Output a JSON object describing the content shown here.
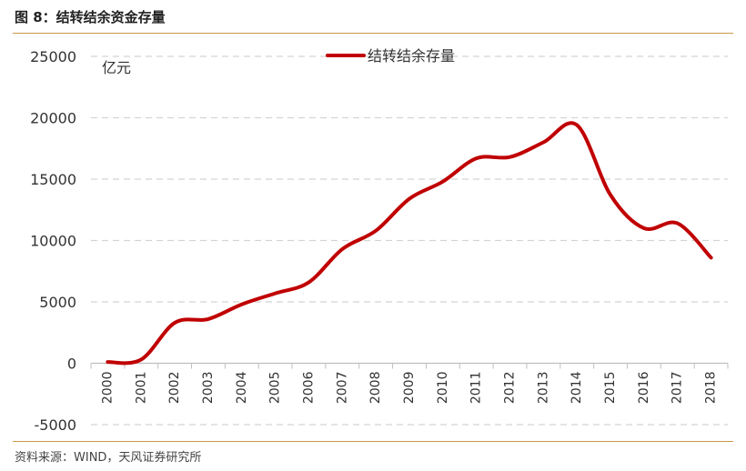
{
  "figure": {
    "title": "图 8：结转结余资金存量",
    "source": "资料来源：WIND，天风证券研究所"
  },
  "chart_data": {
    "type": "line",
    "title": "",
    "xlabel": "",
    "ylabel": "",
    "unit_label": "亿元",
    "x": [
      "2000",
      "2001",
      "2002",
      "2003",
      "2004",
      "2005",
      "2006",
      "2007",
      "2008",
      "2009",
      "2010",
      "2011",
      "2012",
      "2013",
      "2014",
      "2015",
      "2016",
      "2017",
      "2018"
    ],
    "series": [
      {
        "name": "结转结余存量",
        "color": "#c00000",
        "values": [
          100,
          300,
          3300,
          3600,
          4800,
          5700,
          6600,
          9300,
          10800,
          13400,
          14800,
          16700,
          16800,
          18000,
          19400,
          13700,
          11000,
          11400,
          8600
        ]
      }
    ],
    "ylim": [
      -5000,
      25000
    ],
    "yticks": [
      "-5000",
      "0",
      "5000",
      "10000",
      "15000",
      "20000",
      "25000"
    ],
    "grid": "horizontal-dashed",
    "legend_position": "top-center",
    "smooth": true
  }
}
